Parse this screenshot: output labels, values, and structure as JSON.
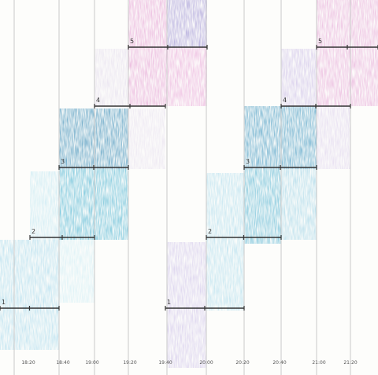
{
  "x_labels": [
    "18:20",
    "18:40",
    "19:00",
    "19:20",
    "19:40",
    "20:00",
    "20:20",
    "20:40",
    "21:00",
    "21:20"
  ],
  "groups": [
    {
      "steps": [
        "1",
        "2",
        "3",
        "4",
        "5"
      ]
    },
    {
      "steps": [
        "1",
        "2",
        "3",
        "4",
        "5"
      ]
    }
  ]
}
